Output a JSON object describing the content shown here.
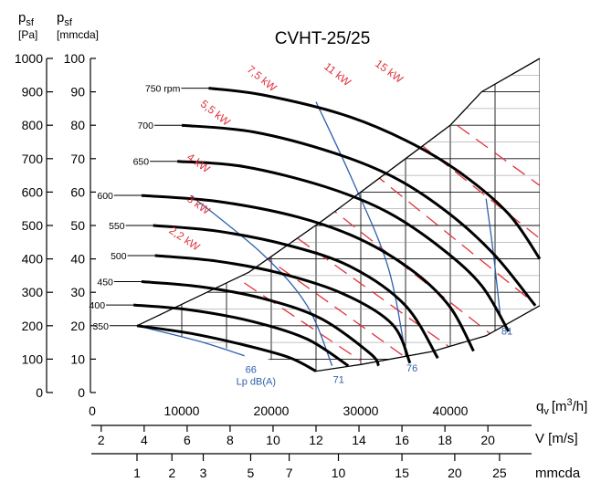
{
  "chart_data": {
    "type": "line",
    "title": "CVHT-25/25",
    "x_axis": {
      "label": "q",
      "label_sub": "v",
      "unit": "[m",
      "unit_sup": "3",
      "unit_end": "/h]",
      "range": [
        0,
        50000
      ],
      "ticks": [
        0,
        10000,
        20000,
        30000,
        40000
      ]
    },
    "y_axis_pa": {
      "label": "p",
      "label_sub": "sf",
      "unit": "[Pa]",
      "range": [
        0,
        1000
      ],
      "ticks": [
        0,
        100,
        200,
        300,
        400,
        500,
        600,
        700,
        800,
        900,
        1000
      ]
    },
    "y_axis_mmcda": {
      "label": "p",
      "label_sub": "sf",
      "unit": "[mmcda]",
      "range": [
        0,
        100
      ],
      "ticks": [
        0,
        10,
        20,
        30,
        40,
        50,
        60,
        70,
        80,
        90,
        100
      ]
    },
    "velocity_axis": {
      "label": "V [m/s]",
      "ticks": [
        {
          "label": "2",
          "q": 1000
        },
        {
          "label": "4",
          "q": 5800
        },
        {
          "label": "6",
          "q": 10600
        },
        {
          "label": "8",
          "q": 15400
        },
        {
          "label": "10",
          "q": 20200
        },
        {
          "label": "12",
          "q": 25000
        },
        {
          "label": "14",
          "q": 29800
        },
        {
          "label": "16",
          "q": 34600
        },
        {
          "label": "18",
          "q": 39400
        },
        {
          "label": "20",
          "q": 44200
        }
      ]
    },
    "mmcda_axis": {
      "label": "mmcda",
      "ticks": [
        {
          "label": "1",
          "q": 5000
        },
        {
          "label": "2",
          "q": 8900
        },
        {
          "label": "3",
          "q": 12400
        },
        {
          "label": "5",
          "q": 17700
        },
        {
          "label": "7",
          "q": 22000
        },
        {
          "label": "10",
          "q": 27500
        },
        {
          "label": "15",
          "q": 34600
        },
        {
          "label": "20",
          "q": 40500
        },
        {
          "label": "25",
          "q": 45500
        }
      ]
    },
    "speed_curves": [
      {
        "name": "350",
        "label": "350",
        "points": [
          [
            5000,
            200
          ],
          [
            11000,
            177
          ],
          [
            17000,
            142
          ],
          [
            22000,
            105
          ],
          [
            25000,
            64
          ]
        ]
      },
      {
        "name": "400",
        "label": "400",
        "points": [
          [
            4600,
            262
          ],
          [
            11000,
            247
          ],
          [
            18000,
            212
          ],
          [
            24000,
            160
          ],
          [
            28600,
            80
          ]
        ]
      },
      {
        "name": "450",
        "label": "450",
        "points": [
          [
            5500,
            332
          ],
          [
            12000,
            317
          ],
          [
            19000,
            282
          ],
          [
            25500,
            222
          ],
          [
            31000,
            118
          ],
          [
            32000,
            80
          ]
        ]
      },
      {
        "name": "500",
        "label": "500",
        "points": [
          [
            7000,
            410
          ],
          [
            14000,
            393
          ],
          [
            21000,
            357
          ],
          [
            28000,
            296
          ],
          [
            33500,
            205
          ],
          [
            35500,
            88
          ]
        ]
      },
      {
        "name": "550",
        "label": "550",
        "points": [
          [
            6800,
            500
          ],
          [
            14000,
            483
          ],
          [
            22000,
            440
          ],
          [
            29000,
            375
          ],
          [
            35000,
            260
          ],
          [
            38600,
            103
          ]
        ]
      },
      {
        "name": "600",
        "label": "600",
        "points": [
          [
            5500,
            590
          ],
          [
            14000,
            572
          ],
          [
            23000,
            525
          ],
          [
            30000,
            458
          ],
          [
            36000,
            360
          ],
          [
            40000,
            255
          ],
          [
            42600,
            124
          ]
        ]
      },
      {
        "name": "650",
        "label": "650",
        "points": [
          [
            9500,
            692
          ],
          [
            17000,
            676
          ],
          [
            26000,
            616
          ],
          [
            33000,
            540
          ],
          [
            39000,
            432
          ],
          [
            43500,
            320
          ],
          [
            46500,
            183
          ]
        ]
      },
      {
        "name": "700",
        "label": "700",
        "points": [
          [
            10000,
            800
          ],
          [
            18000,
            780
          ],
          [
            27000,
            717
          ],
          [
            34000,
            640
          ],
          [
            40000,
            533
          ],
          [
            45000,
            410
          ],
          [
            49500,
            260
          ]
        ]
      },
      {
        "name": "750 rpm",
        "label": "750 rpm",
        "points": [
          [
            13000,
            911
          ],
          [
            19000,
            891
          ],
          [
            28000,
            832
          ],
          [
            35000,
            755
          ],
          [
            41000,
            660
          ],
          [
            46500,
            535
          ],
          [
            50000,
            400
          ]
        ]
      }
    ],
    "system_lines": [
      {
        "name": "lower",
        "points": [
          [
            5000,
            200
          ],
          [
            17500,
            360
          ],
          [
            26000,
            520
          ],
          [
            35000,
            700
          ],
          [
            40000,
            800
          ],
          [
            43500,
            900
          ],
          [
            50000,
            1000
          ]
        ]
      },
      {
        "name": "upper",
        "points": [
          [
            25000,
            64
          ],
          [
            30000,
            84
          ],
          [
            38000,
            123
          ],
          [
            44000,
            170
          ],
          [
            50000,
            260
          ]
        ]
      }
    ],
    "power_lines": [
      {
        "name": "2.2 kW",
        "label": "2,2 kW",
        "points": [
          [
            8500,
            480
          ],
          [
            30000,
            95
          ]
        ]
      },
      {
        "name": "3 kW",
        "label": "3 kW",
        "points": [
          [
            10500,
            575
          ],
          [
            35000,
            105
          ]
        ]
      },
      {
        "name": "4 kW",
        "label": "4 kW",
        "points": [
          [
            10500,
            700
          ],
          [
            40500,
            125
          ]
        ]
      },
      {
        "name": "5.5 kW",
        "label": "5,5 kW",
        "points": [
          [
            12000,
            860
          ],
          [
            44500,
            175
          ]
        ]
      },
      {
        "name": "7.5 kW",
        "label": "7,5 kW",
        "points": [
          [
            15500,
            1000
          ],
          [
            49500,
            265
          ]
        ]
      },
      {
        "name": "11 kW",
        "label": "11 kW",
        "points": [
          [
            24500,
            1000
          ],
          [
            51000,
            440
          ]
        ]
      },
      {
        "name": "15 kW",
        "label": "15 kW",
        "points": [
          [
            30500,
            1000
          ],
          [
            51000,
            600
          ]
        ]
      }
    ],
    "noise_curves": [
      {
        "name": "66",
        "label": "66",
        "sub": "Lp dB(A)",
        "points": [
          [
            5000,
            200
          ],
          [
            12000,
            153
          ],
          [
            17000,
            110
          ]
        ]
      },
      {
        "name": "71",
        "label": "71",
        "points": [
          [
            11000,
            590
          ],
          [
            19000,
            415
          ],
          [
            24000,
            260
          ],
          [
            26800,
            80
          ]
        ]
      },
      {
        "name": "76",
        "label": "76",
        "points": [
          [
            25000,
            870
          ],
          [
            29000,
            640
          ],
          [
            33000,
            380
          ],
          [
            35000,
            115
          ]
        ]
      },
      {
        "name": "81",
        "label": "81",
        "points": [
          [
            44000,
            580
          ],
          [
            44800,
            420
          ],
          [
            45600,
            225
          ]
        ]
      }
    ]
  }
}
